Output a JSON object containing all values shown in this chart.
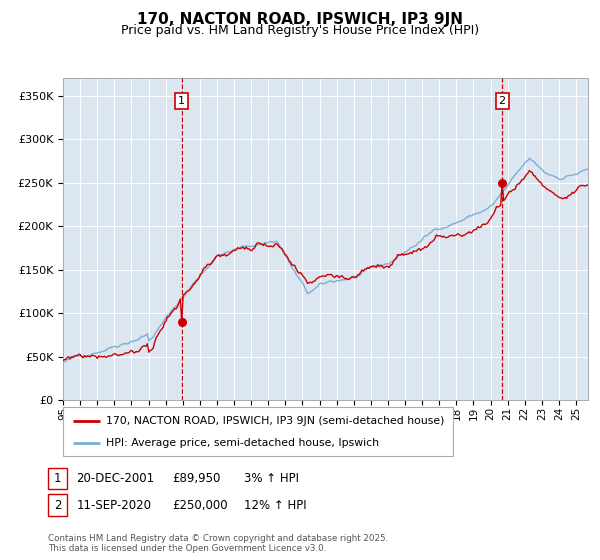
{
  "title": "170, NACTON ROAD, IPSWICH, IP3 9JN",
  "subtitle": "Price paid vs. HM Land Registry's House Price Index (HPI)",
  "background_color": "#dce6f0",
  "hpi_color": "#7bafd4",
  "price_color": "#cc0000",
  "dashed_color": "#cc0000",
  "ylim": [
    0,
    370000
  ],
  "yticks": [
    0,
    50000,
    100000,
    150000,
    200000,
    250000,
    300000,
    350000
  ],
  "ytick_labels": [
    "£0",
    "£50K",
    "£100K",
    "£150K",
    "£200K",
    "£250K",
    "£300K",
    "£350K"
  ],
  "xlim_start": 1995.0,
  "xlim_end": 2025.7,
  "transaction1_date": 2001.97,
  "transaction1_price": 89950,
  "transaction2_date": 2020.71,
  "transaction2_price": 250000,
  "legend_line1": "170, NACTON ROAD, IPSWICH, IP3 9JN (semi-detached house)",
  "legend_line2": "HPI: Average price, semi-detached house, Ipswich",
  "footer": "Contains HM Land Registry data © Crown copyright and database right 2025.\nThis data is licensed under the Open Government Licence v3.0.",
  "xtick_years": [
    1995,
    1996,
    1997,
    1998,
    1999,
    2000,
    2001,
    2002,
    2003,
    2004,
    2005,
    2006,
    2007,
    2008,
    2009,
    2010,
    2011,
    2012,
    2013,
    2014,
    2015,
    2016,
    2017,
    2018,
    2019,
    2020,
    2021,
    2022,
    2023,
    2024,
    2025
  ]
}
